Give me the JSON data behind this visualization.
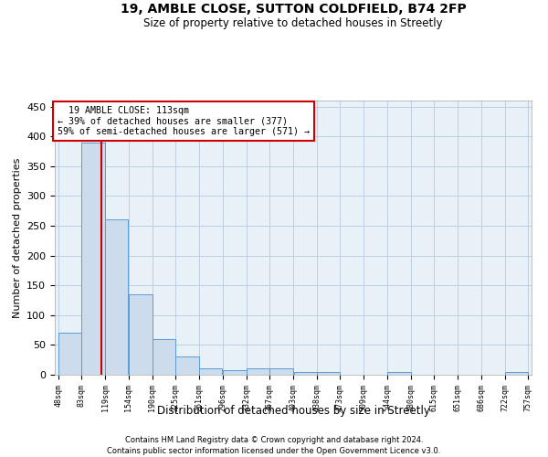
{
  "title1": "19, AMBLE CLOSE, SUTTON COLDFIELD, B74 2FP",
  "title2": "Size of property relative to detached houses in Streetly",
  "xlabel": "Distribution of detached houses by size in Streetly",
  "ylabel": "Number of detached properties",
  "footer1": "Contains HM Land Registry data © Crown copyright and database right 2024.",
  "footer2": "Contains public sector information licensed under the Open Government Licence v3.0.",
  "annotation_line1": "19 AMBLE CLOSE: 113sqm",
  "annotation_line2": "← 39% of detached houses are smaller (377)",
  "annotation_line3": "59% of semi-detached houses are larger (571) →",
  "property_size": 113,
  "bar_edges": [
    48,
    83,
    119,
    154,
    190,
    225,
    261,
    296,
    332,
    367,
    403,
    438,
    473,
    509,
    544,
    580,
    615,
    651,
    686,
    722,
    757
  ],
  "bar_heights": [
    70,
    390,
    260,
    135,
    60,
    30,
    10,
    7,
    10,
    10,
    5,
    5,
    0,
    0,
    4,
    0,
    0,
    0,
    0,
    4
  ],
  "bar_color": "#ccdcec",
  "bar_edge_color": "#5b9bd5",
  "redline_color": "#cc0000",
  "bg_color": "#e8f0f8",
  "grid_color": "#b8c8dc",
  "annotation_box_color": "#cc0000",
  "ylim": [
    0,
    460
  ],
  "yticks": [
    0,
    50,
    100,
    150,
    200,
    250,
    300,
    350,
    400,
    450
  ]
}
